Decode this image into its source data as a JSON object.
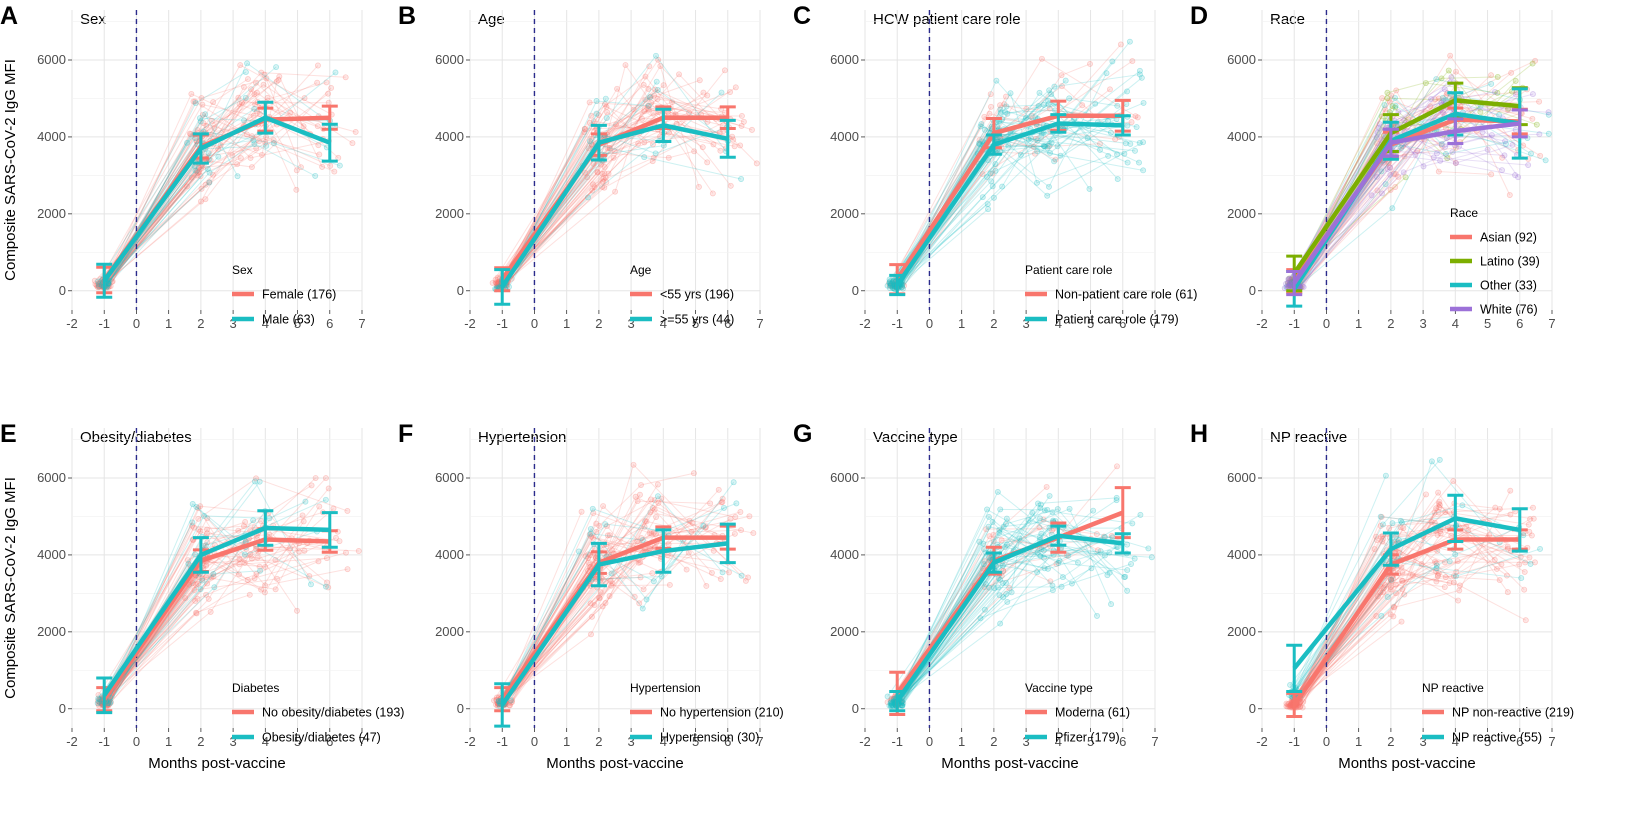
{
  "figure": {
    "ylabel": "Composite SARS-CoV-2 IgG MFI",
    "xlabel": "Months post-vaccine",
    "vline_at": 0,
    "colors": {
      "red": "#F8766D",
      "cyan": "#1ABDC2",
      "green": "#7CAE00",
      "purple": "#9C71D8",
      "cyan_bar": "#1ABDC2",
      "vline": "#2B2B8C",
      "grid": "#E5E5E5"
    }
  },
  "chart_data": [
    {
      "type": "line",
      "letter": "A",
      "title": "Sex",
      "xlim": [
        -2,
        7
      ],
      "ylim": [
        -500,
        7300
      ],
      "x_ticks": [
        -2,
        -1,
        0,
        1,
        2,
        3,
        4,
        5,
        6,
        7
      ],
      "y_ticks": [
        0,
        2000,
        4000,
        6000
      ],
      "legend": {
        "title": "Sex",
        "position": "lower-center"
      },
      "series": [
        {
          "name": "Female (176)",
          "color": "#F8766D",
          "x": [
            -1,
            2,
            4,
            6
          ],
          "y": [
            280,
            3750,
            4450,
            4500
          ],
          "err": [
            330,
            300,
            300,
            300
          ]
        },
        {
          "name": "Male (63)",
          "color": "#1ABDC2",
          "x": [
            -1,
            2,
            4,
            6
          ],
          "y": [
            260,
            3700,
            4500,
            3850
          ],
          "err": [
            430,
            380,
            400,
            480
          ]
        }
      ]
    },
    {
      "type": "line",
      "letter": "B",
      "title": "Age",
      "xlim": [
        -2,
        7
      ],
      "ylim": [
        -500,
        7300
      ],
      "x_ticks": [
        -2,
        -1,
        0,
        1,
        2,
        3,
        4,
        5,
        6,
        7
      ],
      "y_ticks": [
        0,
        2000,
        4000,
        6000
      ],
      "legend": {
        "title": "Age",
        "position": "lower-center"
      },
      "series": [
        {
          "name": "<55 yrs (196)",
          "color": "#F8766D",
          "x": [
            -1,
            2,
            4,
            6
          ],
          "y": [
            300,
            3800,
            4500,
            4500
          ],
          "err": [
            300,
            280,
            280,
            280
          ]
        },
        {
          "name": ">=55 yrs (44)",
          "color": "#1ABDC2",
          "x": [
            -1,
            2,
            4,
            6
          ],
          "y": [
            100,
            3850,
            4300,
            3950
          ],
          "err": [
            450,
            450,
            420,
            480
          ]
        }
      ]
    },
    {
      "type": "line",
      "letter": "C",
      "title": "HCW patient care role",
      "xlim": [
        -2,
        7
      ],
      "ylim": [
        -500,
        7300
      ],
      "x_ticks": [
        -2,
        -1,
        0,
        1,
        2,
        3,
        4,
        5,
        6,
        7
      ],
      "y_ticks": [
        0,
        2000,
        4000,
        6000
      ],
      "legend": {
        "title": "Patient care role",
        "position": "lower-center"
      },
      "series": [
        {
          "name": "Non-patient care role (61)",
          "color": "#F8766D",
          "x": [
            -1,
            2,
            4,
            6
          ],
          "y": [
            300,
            4100,
            4550,
            4550
          ],
          "err": [
            380,
            380,
            380,
            400
          ]
        },
        {
          "name": "Patient care role (179)",
          "color": "#1ABDC2",
          "x": [
            -1,
            2,
            4,
            6
          ],
          "y": [
            150,
            3800,
            4350,
            4300
          ],
          "err": [
            250,
            250,
            230,
            250
          ]
        }
      ]
    },
    {
      "type": "line",
      "letter": "D",
      "title": "Race",
      "xlim": [
        -2,
        7
      ],
      "ylim": [
        -500,
        7300
      ],
      "x_ticks": [
        -2,
        -1,
        0,
        1,
        2,
        3,
        4,
        5,
        6,
        7
      ],
      "y_ticks": [
        0,
        2000,
        4000,
        6000
      ],
      "legend": {
        "title": "Race",
        "position": "lower-right"
      },
      "series": [
        {
          "name": "Asian (92)",
          "color": "#F8766D",
          "x": [
            -1,
            2,
            4,
            6
          ],
          "y": [
            250,
            3800,
            4450,
            4400
          ],
          "err": [
            300,
            320,
            300,
            320
          ]
        },
        {
          "name": "Latino (39)",
          "color": "#7CAE00",
          "x": [
            -1,
            2,
            4,
            6
          ],
          "y": [
            450,
            4100,
            4950,
            4800
          ],
          "err": [
            450,
            480,
            450,
            480
          ]
        },
        {
          "name": "Other (33)",
          "color": "#1ABDC2",
          "x": [
            -1,
            2,
            4,
            6
          ],
          "y": [
            50,
            3900,
            4600,
            4350
          ],
          "err": [
            450,
            480,
            550,
            900
          ]
        },
        {
          "name": "White (76)",
          "color": "#9C71D8",
          "x": [
            -1,
            2,
            4,
            6
          ],
          "y": [
            200,
            3850,
            4150,
            4350
          ],
          "err": [
            300,
            350,
            320,
            350
          ]
        }
      ]
    },
    {
      "type": "line",
      "letter": "E",
      "title": "Obesity/diabetes",
      "xlim": [
        -2,
        7
      ],
      "ylim": [
        -500,
        7300
      ],
      "x_ticks": [
        -2,
        -1,
        0,
        1,
        2,
        3,
        4,
        5,
        6,
        7
      ],
      "y_ticks": [
        0,
        2000,
        4000,
        6000
      ],
      "legend": {
        "title": "Diabetes",
        "position": "lower-center"
      },
      "series": [
        {
          "name": "No obesity/diabetes (193)",
          "color": "#F8766D",
          "x": [
            -1,
            2,
            4,
            6
          ],
          "y": [
            250,
            3850,
            4400,
            4350
          ],
          "err": [
            300,
            280,
            280,
            280
          ]
        },
        {
          "name": "Obesity/diabetes (47)",
          "color": "#1ABDC2",
          "x": [
            -1,
            2,
            4,
            6
          ],
          "y": [
            350,
            4000,
            4700,
            4650
          ],
          "err": [
            450,
            450,
            450,
            450
          ]
        }
      ]
    },
    {
      "type": "line",
      "letter": "F",
      "title": "Hypertension",
      "xlim": [
        -2,
        7
      ],
      "ylim": [
        -500,
        7300
      ],
      "x_ticks": [
        -2,
        -1,
        0,
        1,
        2,
        3,
        4,
        5,
        6,
        7
      ],
      "y_ticks": [
        0,
        2000,
        4000,
        6000
      ],
      "legend": {
        "title": "Hypertension",
        "position": "lower-center"
      },
      "series": [
        {
          "name": "No hypertension (210)",
          "color": "#F8766D",
          "x": [
            -1,
            2,
            4,
            6
          ],
          "y": [
            250,
            3800,
            4450,
            4450
          ],
          "err": [
            300,
            280,
            280,
            300
          ]
        },
        {
          "name": "Hypertension (30)",
          "color": "#1ABDC2",
          "x": [
            -1,
            2,
            4,
            6
          ],
          "y": [
            100,
            3750,
            4100,
            4300
          ],
          "err": [
            550,
            550,
            550,
            500
          ]
        }
      ]
    },
    {
      "type": "line",
      "letter": "G",
      "title": "Vaccine type",
      "xlim": [
        -2,
        7
      ],
      "ylim": [
        -500,
        7300
      ],
      "x_ticks": [
        -2,
        -1,
        0,
        1,
        2,
        3,
        4,
        5,
        6,
        7
      ],
      "y_ticks": [
        0,
        2000,
        4000,
        6000
      ],
      "legend": {
        "title": "Vaccine type",
        "position": "lower-center"
      },
      "series": [
        {
          "name": "Moderna (61)",
          "color": "#F8766D",
          "x": [
            -1,
            2,
            4,
            6
          ],
          "y": [
            400,
            3850,
            4450,
            5100
          ],
          "err": [
            550,
            350,
            380,
            650
          ]
        },
        {
          "name": "Pfizer (179)",
          "color": "#1ABDC2",
          "x": [
            -1,
            2,
            4,
            6
          ],
          "y": [
            200,
            3800,
            4500,
            4300
          ],
          "err": [
            250,
            250,
            250,
            250
          ]
        }
      ]
    },
    {
      "type": "line",
      "letter": "H",
      "title": "NP reactive",
      "xlim": [
        -2,
        7
      ],
      "ylim": [
        -500,
        7300
      ],
      "x_ticks": [
        -2,
        -1,
        0,
        1,
        2,
        3,
        4,
        5,
        6,
        7
      ],
      "y_ticks": [
        0,
        2000,
        4000,
        6000
      ],
      "legend": {
        "title": "NP reactive",
        "position": "lower-center"
      },
      "series": [
        {
          "name": "NP non-reactive (219)",
          "color": "#F8766D",
          "x": [
            -1,
            2,
            4,
            6
          ],
          "y": [
            100,
            3750,
            4400,
            4400
          ],
          "err": [
            300,
            250,
            250,
            250
          ]
        },
        {
          "name": "NP reactive (55)",
          "color": "#1ABDC2",
          "x": [
            -1,
            2,
            4,
            6
          ],
          "y": [
            1050,
            4150,
            4950,
            4650
          ],
          "err": [
            600,
            420,
            600,
            550
          ]
        }
      ]
    }
  ]
}
